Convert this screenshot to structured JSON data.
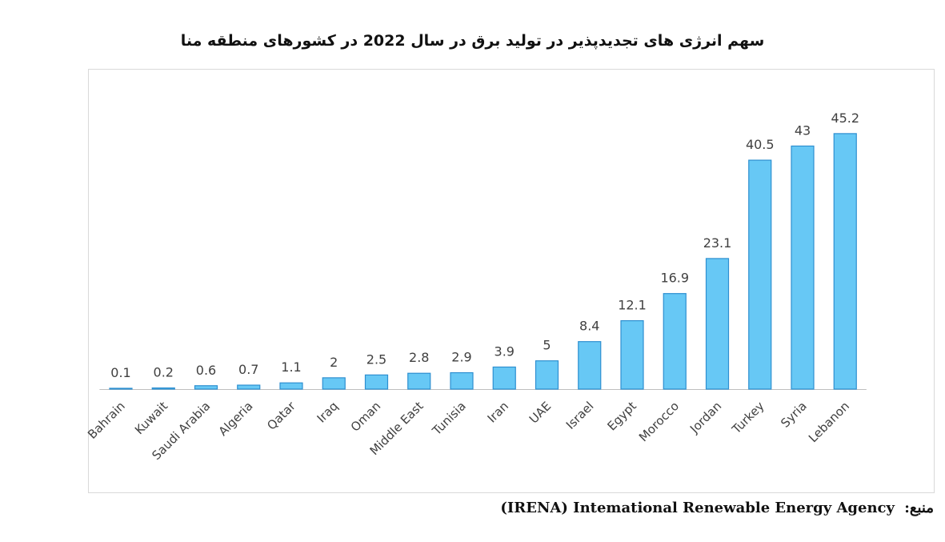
{
  "chart_data": {
    "type": "bar",
    "title": "سهم انرژی های تجدیدپذیر در تولید برق در سال 2022 در کشورهای منطقه منا",
    "categories": [
      "Bahrain",
      "Kuwait",
      "Saudi Arabia",
      "Algeria",
      "Qatar",
      "Iraq",
      "Oman",
      "Middle East",
      "Tunisia",
      "Iran",
      "UAE",
      "Israel",
      "Egypt",
      "Morocco",
      "Jordan",
      "Turkey",
      "Syria",
      "Lebanon"
    ],
    "values": [
      0.1,
      0.2,
      0.6,
      0.7,
      1.1,
      2,
      2.5,
      2.8,
      2.9,
      3.9,
      5,
      8.4,
      12.1,
      16.9,
      23.1,
      40.5,
      43,
      45.2
    ],
    "value_labels": [
      "0.1",
      "0.2",
      "0.6",
      "0.7",
      "1.1",
      "2",
      "2.5",
      "2.8",
      "2.9",
      "3.9",
      "5",
      "8.4",
      "12.1",
      "16.9",
      "23.1",
      "40.5",
      "43",
      "45.2"
    ],
    "xlabel": "",
    "ylabel": "",
    "ylim": [
      0,
      50
    ],
    "grid": false,
    "legend": "none",
    "colors": {
      "bar_fill": "#67c8f5",
      "bar_stroke": "#2e8fd0",
      "axis": "#bfbfbf",
      "text": "#404040"
    }
  },
  "source": {
    "label": "منبع:",
    "text": "(IRENA) Intemational Renewable Energy Agency"
  }
}
